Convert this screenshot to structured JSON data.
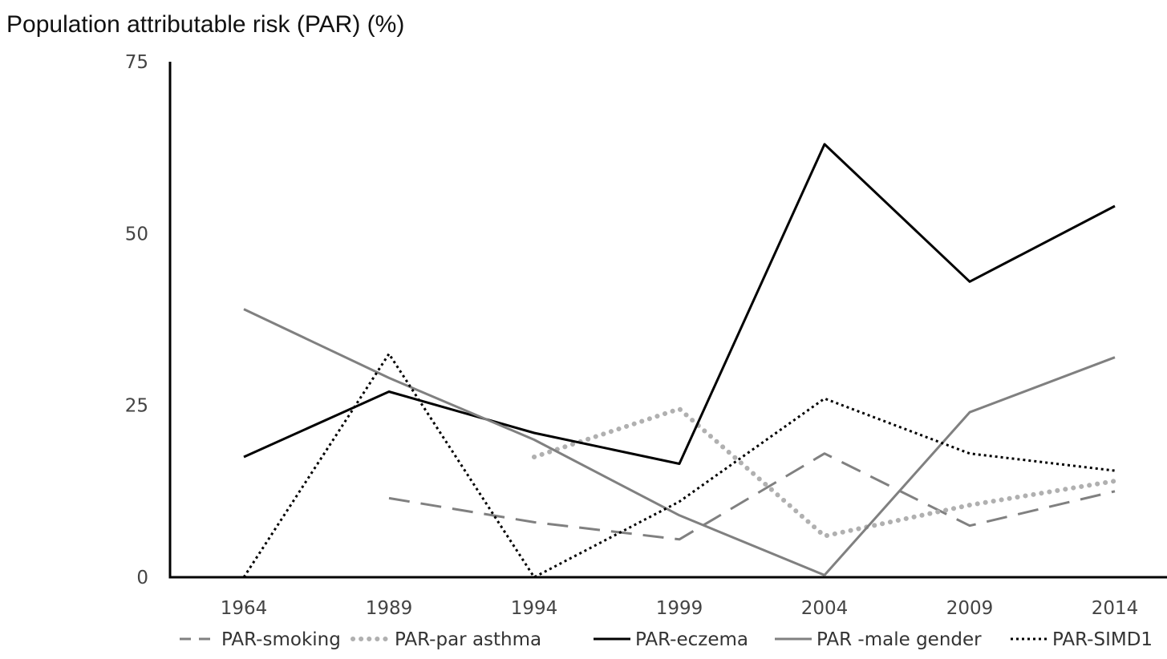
{
  "chart_data": {
    "type": "line",
    "title": "",
    "ylabel": "Population attributable risk (PAR) (%)",
    "xlabel": "",
    "categories": [
      "1964",
      "1989",
      "1994",
      "1999",
      "2004",
      "2009",
      "2014"
    ],
    "ylim": [
      0,
      75
    ],
    "yticks": [
      0,
      25,
      50,
      75
    ],
    "grid": false,
    "legend_position": "bottom",
    "series": [
      {
        "name": "PAR-smoking",
        "values": [
          null,
          11.5,
          8,
          5.5,
          18,
          7.5,
          12.5
        ],
        "color": "#808080",
        "style": "dashed"
      },
      {
        "name": "PAR-par asthma",
        "values": [
          null,
          null,
          17.5,
          24.5,
          6,
          10.5,
          14
        ],
        "color": "#b0b0b0",
        "style": "dotted-heavy"
      },
      {
        "name": "PAR-eczema",
        "values": [
          17.5,
          27,
          21,
          16.5,
          63,
          43,
          54
        ],
        "color": "#000000",
        "style": "solid"
      },
      {
        "name": "PAR -male gender",
        "values": [
          39,
          29,
          20,
          9,
          0.3,
          24,
          32
        ],
        "color": "#808080",
        "style": "solid"
      },
      {
        "name": "PAR-SIMD1",
        "values": [
          0,
          32.5,
          0,
          11,
          26,
          18,
          15.5
        ],
        "color": "#000000",
        "style": "dotted"
      }
    ]
  }
}
